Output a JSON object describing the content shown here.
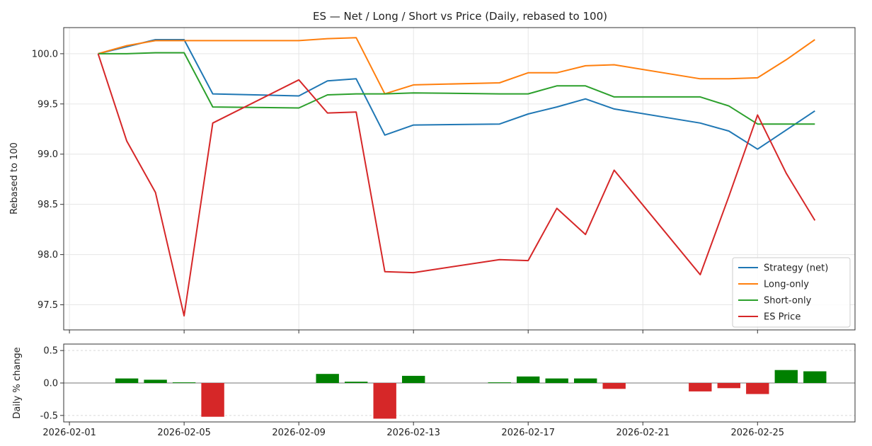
{
  "chart_data": [
    {
      "type": "line",
      "title": "ES — Net / Long / Short vs Price (Daily, rebased to 100)",
      "xlabel": "",
      "ylabel": "Rebased to 100",
      "ylim": [
        97.25,
        100.26
      ],
      "yticks": [
        97.5,
        98.0,
        98.5,
        99.0,
        99.5,
        100.0
      ],
      "xticks": [
        "2026-02-01",
        "2026-02-05",
        "2026-02-09",
        "2026-02-13",
        "2026-02-17",
        "2026-02-21",
        "2026-02-25"
      ],
      "grid": true,
      "legend_position": "lower-right",
      "x": [
        "2026-02-02",
        "2026-02-03",
        "2026-02-04",
        "2026-02-05",
        "2026-02-06",
        "2026-02-09",
        "2026-02-10",
        "2026-02-11",
        "2026-02-12",
        "2026-02-13",
        "2026-02-16",
        "2026-02-17",
        "2026-02-18",
        "2026-02-19",
        "2026-02-20",
        "2026-02-23",
        "2026-02-24",
        "2026-02-25",
        "2026-02-26",
        "2026-02-27"
      ],
      "series": [
        {
          "name": "Strategy (net)",
          "color": "#1f77b4",
          "values": [
            100.0,
            100.07,
            100.14,
            100.14,
            99.6,
            99.58,
            99.73,
            99.75,
            99.19,
            99.29,
            99.3,
            99.4,
            99.47,
            99.55,
            99.45,
            99.31,
            99.23,
            99.05,
            99.24,
            99.43
          ]
        },
        {
          "name": "Long-only",
          "color": "#ff7f0e",
          "values": [
            100.0,
            100.08,
            100.13,
            100.13,
            100.13,
            100.13,
            100.15,
            100.16,
            99.6,
            99.69,
            99.71,
            99.81,
            99.81,
            99.88,
            99.89,
            99.75,
            99.75,
            99.76,
            99.94,
            100.14
          ]
        },
        {
          "name": "Short-only",
          "color": "#2ca02c",
          "values": [
            100.0,
            100.0,
            100.01,
            100.01,
            99.47,
            99.46,
            99.59,
            99.6,
            99.6,
            99.61,
            99.6,
            99.6,
            99.68,
            99.68,
            99.57,
            99.57,
            99.48,
            99.3,
            99.3,
            99.3
          ]
        },
        {
          "name": "ES Price",
          "color": "#d62728",
          "values": [
            100.0,
            99.13,
            98.62,
            97.39,
            99.31,
            99.74,
            99.41,
            99.42,
            97.83,
            97.82,
            97.95,
            97.94,
            98.46,
            98.2,
            98.84,
            97.8,
            98.58,
            99.39,
            98.81,
            98.34
          ]
        }
      ]
    },
    {
      "type": "bar",
      "title": "",
      "xlabel": "",
      "ylabel": "Daily % change",
      "ylim": [
        -0.6,
        0.6
      ],
      "yticks": [
        -0.5,
        0.0,
        0.5
      ],
      "xticks": [
        "2026-02-01",
        "2026-02-05",
        "2026-02-09",
        "2026-02-13",
        "2026-02-17",
        "2026-02-21",
        "2026-02-25"
      ],
      "grid": true,
      "positive_color": "#008000",
      "negative_color": "#d62728",
      "categories": [
        "2026-02-03",
        "2026-02-04",
        "2026-02-05",
        "2026-02-06",
        "2026-02-10",
        "2026-02-11",
        "2026-02-12",
        "2026-02-13",
        "2026-02-16",
        "2026-02-17",
        "2026-02-18",
        "2026-02-19",
        "2026-02-20",
        "2026-02-23",
        "2026-02-24",
        "2026-02-25",
        "2026-02-26",
        "2026-02-27"
      ],
      "values": [
        0.07,
        0.05,
        0.01,
        -0.52,
        0.14,
        0.02,
        -0.55,
        0.11,
        0.01,
        0.1,
        0.07,
        0.07,
        -0.09,
        -0.13,
        -0.08,
        -0.17,
        0.2,
        0.18
      ]
    }
  ]
}
